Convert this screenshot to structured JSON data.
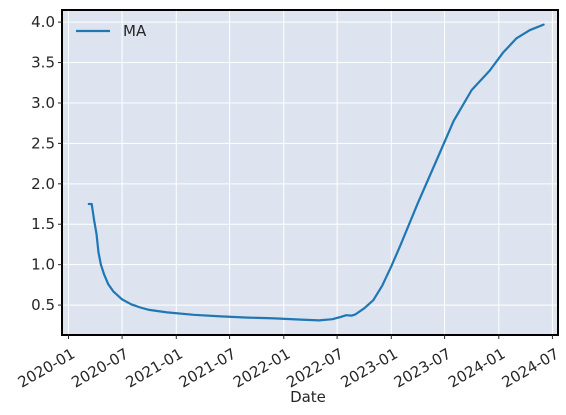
{
  "chart_data": {
    "type": "line",
    "xlabel": "Date",
    "ylabel": "",
    "x_axis": "date",
    "xlim": [
      "2019-12-10",
      "2024-07-20"
    ],
    "ylim": [
      0.13,
      4.15
    ],
    "x_ticks": [
      "2020-01",
      "2020-07",
      "2021-01",
      "2021-07",
      "2022-01",
      "2022-07",
      "2023-01",
      "2023-07",
      "2024-01",
      "2024-07"
    ],
    "y_ticks": [
      "0.5",
      "1.0",
      "1.5",
      "2.0",
      "2.5",
      "3.0",
      "3.5",
      "4.0"
    ],
    "grid": true,
    "legend_position": "top-left",
    "colors": {
      "plot_background": "#dde3ef",
      "grid": "#ffffff",
      "frame": "#000000"
    },
    "series": [
      {
        "name": "MA",
        "color": "#1f77b4",
        "points": [
          [
            "2020-03-10",
            1.75
          ],
          [
            "2020-03-20",
            1.75
          ],
          [
            "2020-03-28",
            1.55
          ],
          [
            "2020-04-05",
            1.38
          ],
          [
            "2020-04-12",
            1.15
          ],
          [
            "2020-04-20",
            1.0
          ],
          [
            "2020-05-01",
            0.88
          ],
          [
            "2020-05-15",
            0.76
          ],
          [
            "2020-06-01",
            0.67
          ],
          [
            "2020-07-01",
            0.57
          ],
          [
            "2020-08-01",
            0.51
          ],
          [
            "2020-09-01",
            0.47
          ],
          [
            "2020-10-01",
            0.44
          ],
          [
            "2020-12-01",
            0.41
          ],
          [
            "2021-03-01",
            0.38
          ],
          [
            "2021-06-01",
            0.36
          ],
          [
            "2021-09-01",
            0.345
          ],
          [
            "2021-12-01",
            0.335
          ],
          [
            "2022-03-01",
            0.32
          ],
          [
            "2022-05-01",
            0.31
          ],
          [
            "2022-06-15",
            0.325
          ],
          [
            "2022-07-15",
            0.355
          ],
          [
            "2022-08-01",
            0.375
          ],
          [
            "2022-08-20",
            0.37
          ],
          [
            "2022-09-01",
            0.385
          ],
          [
            "2022-10-01",
            0.46
          ],
          [
            "2022-11-01",
            0.56
          ],
          [
            "2022-12-01",
            0.74
          ],
          [
            "2023-01-01",
            0.98
          ],
          [
            "2023-02-01",
            1.24
          ],
          [
            "2023-04-01",
            1.76
          ],
          [
            "2023-06-01",
            2.27
          ],
          [
            "2023-08-01",
            2.78
          ],
          [
            "2023-10-01",
            3.16
          ],
          [
            "2023-12-01",
            3.4
          ],
          [
            "2024-01-15",
            3.62
          ],
          [
            "2024-03-01",
            3.8
          ],
          [
            "2024-04-15",
            3.9
          ],
          [
            "2024-06-01",
            3.97
          ]
        ]
      }
    ]
  }
}
